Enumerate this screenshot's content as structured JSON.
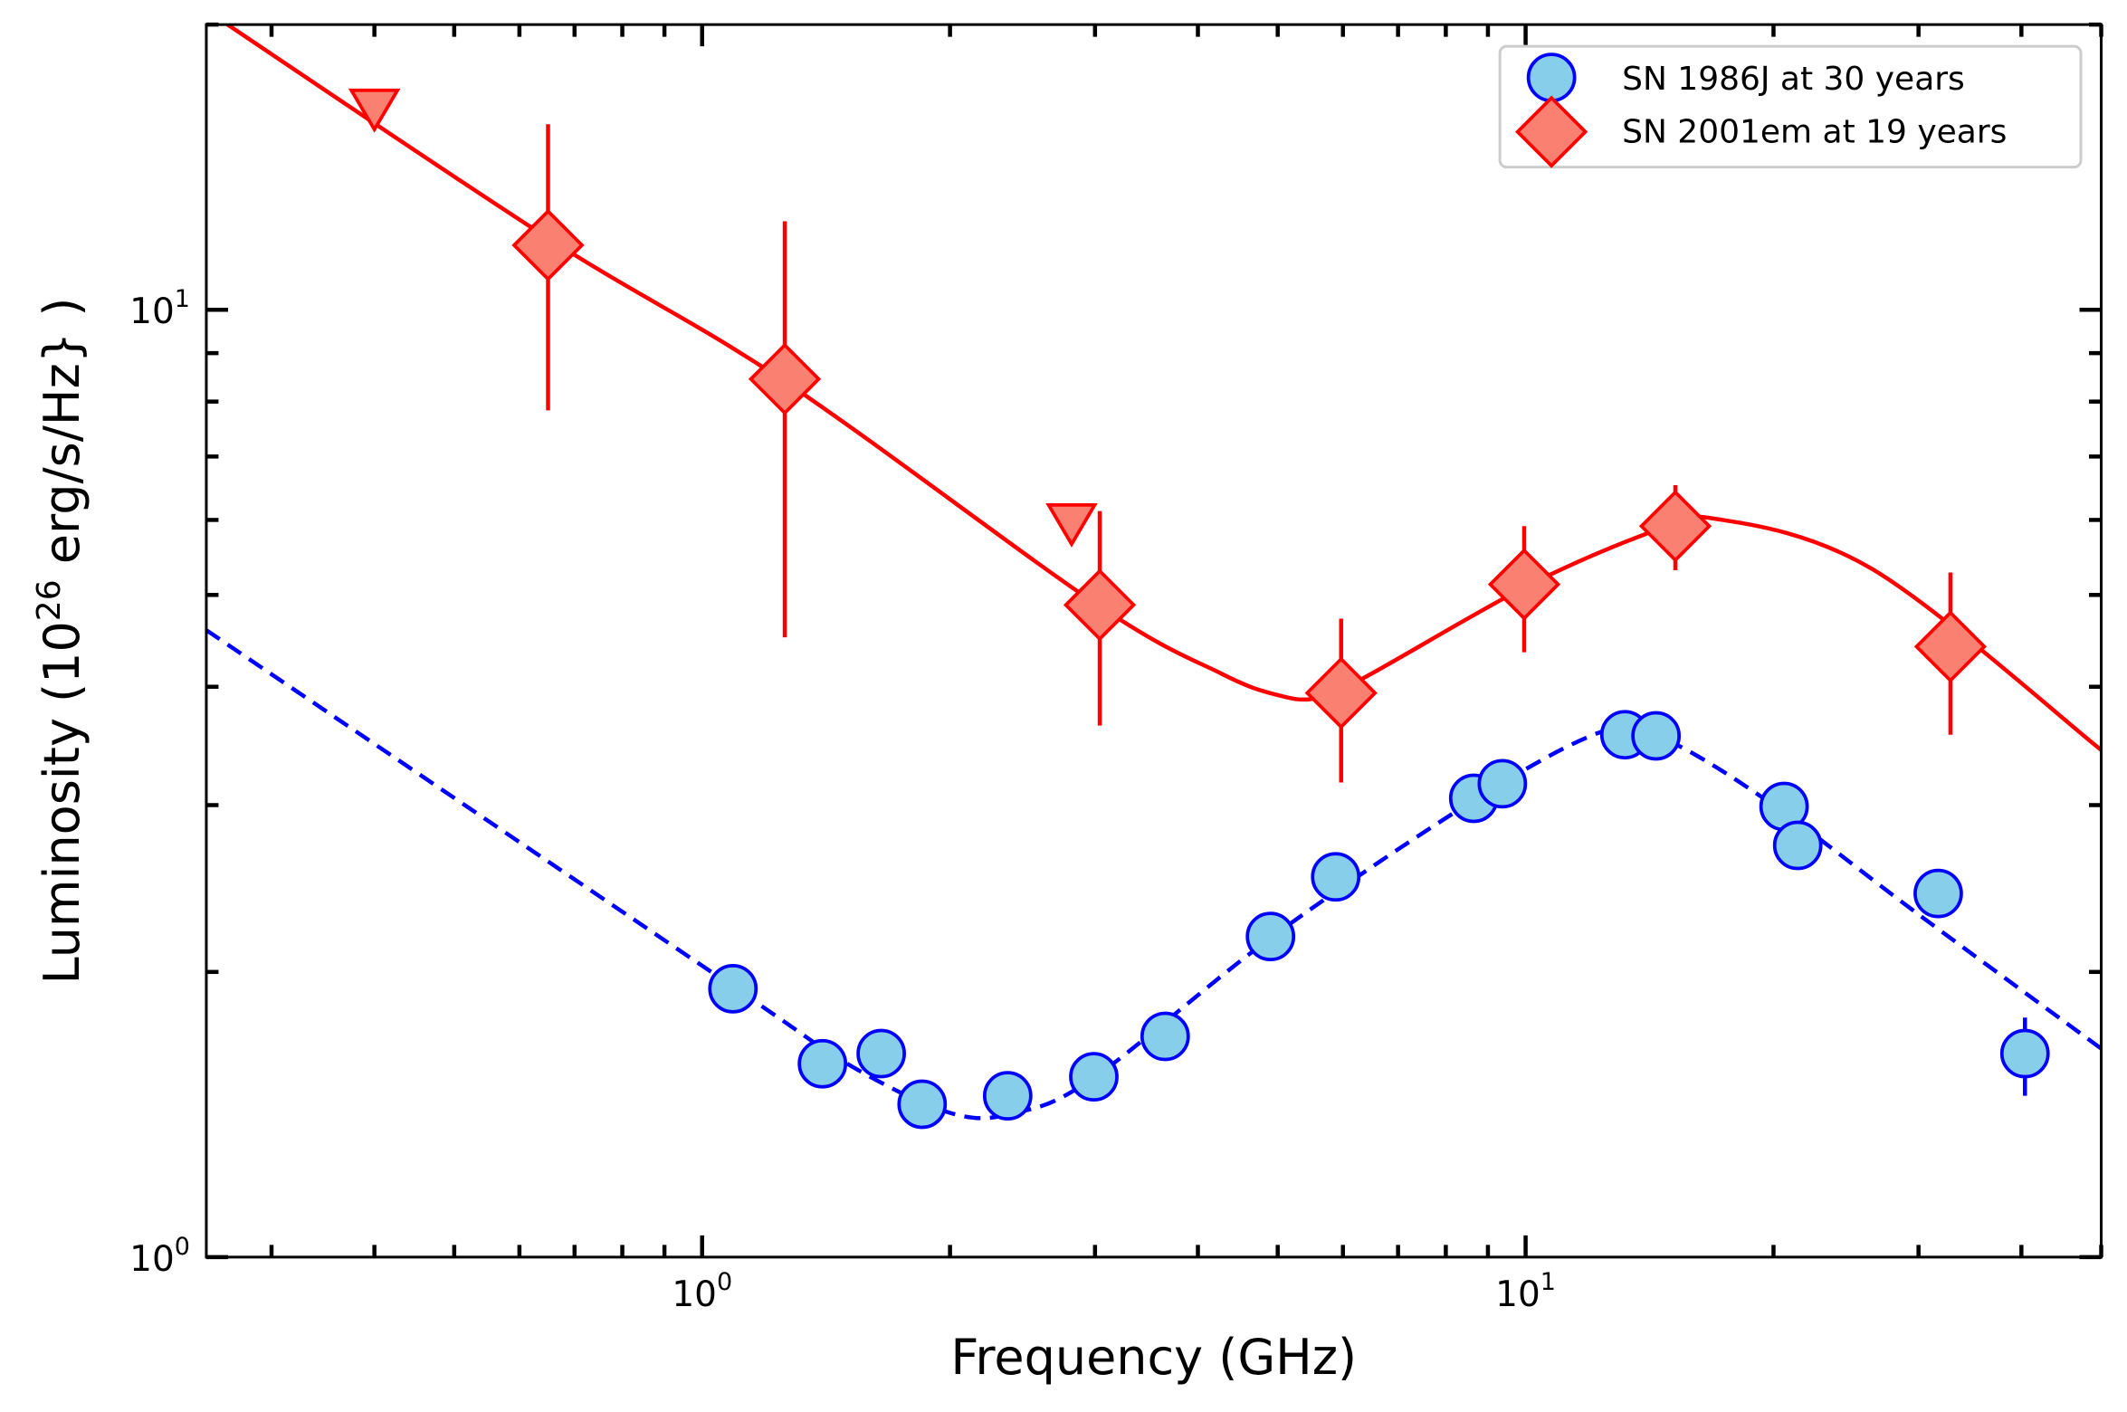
{
  "chart_data": {
    "type": "scatter",
    "xscale": "log",
    "yscale": "log",
    "xlim": [
      0.25,
      50
    ],
    "ylim": [
      1,
      20
    ],
    "xlabel": "Frequency (GHz)",
    "ylabel": {
      "prefix": "Luminosity (10",
      "sup": "26",
      "suffix": " erg/s/Hz} )"
    },
    "grid": false,
    "legend_placement": "top-right",
    "x_ticks": [
      {
        "value": 1,
        "base": "10",
        "exp": "0"
      },
      {
        "value": 10,
        "base": "10",
        "exp": "1"
      }
    ],
    "y_ticks": [
      {
        "value": 1,
        "base": "10",
        "exp": "0"
      },
      {
        "value": 10,
        "base": "10",
        "exp": "1"
      }
    ],
    "series": [
      {
        "name": "SN 1986J at 30 years",
        "marker": "circle",
        "face_color": "#87ceeb",
        "edge_color": "#0000ff",
        "points": [
          {
            "x": 1.09,
            "y": 1.92
          },
          {
            "x": 1.4,
            "y": 1.6
          },
          {
            "x": 1.65,
            "y": 1.64
          },
          {
            "x": 1.85,
            "y": 1.45
          },
          {
            "x": 2.35,
            "y": 1.48
          },
          {
            "x": 2.99,
            "y": 1.55
          },
          {
            "x": 3.65,
            "y": 1.71
          },
          {
            "x": 4.9,
            "y": 2.18
          },
          {
            "x": 5.88,
            "y": 2.52
          },
          {
            "x": 8.65,
            "y": 3.05
          },
          {
            "x": 9.37,
            "y": 3.16
          },
          {
            "x": 13.2,
            "y": 3.56
          },
          {
            "x": 14.4,
            "y": 3.55
          },
          {
            "x": 20.6,
            "y": 2.99
          },
          {
            "x": 21.4,
            "y": 2.72
          },
          {
            "x": 31.7,
            "y": 2.42
          },
          {
            "x": 40.4,
            "y": 1.64,
            "ylo": 1.48,
            "yhi": 1.79
          }
        ],
        "model": {
          "style": "dashed",
          "color": "#0000ff",
          "points": [
            [
              0.25,
              4.59
            ],
            [
              1.09,
              1.93
            ],
            [
              1.5,
              1.6
            ],
            [
              2.0,
              1.42
            ],
            [
              2.4,
              1.42
            ],
            [
              3.0,
              1.55
            ],
            [
              5.0,
              2.2
            ],
            [
              9.0,
              3.1
            ],
            [
              12.8,
              3.62
            ],
            [
              15,
              3.5
            ],
            [
              20,
              3.0
            ],
            [
              30,
              2.3
            ],
            [
              50,
              1.66
            ]
          ]
        }
      },
      {
        "name": "SN 2001em at 19 years",
        "marker": "diamond",
        "face_color": "#fa8072",
        "edge_color": "#ff0000",
        "points": [
          {
            "x": 0.65,
            "y": 11.7,
            "ylo": 7.83,
            "yhi": 15.7
          },
          {
            "x": 1.26,
            "y": 8.45,
            "ylo": 4.51,
            "yhi": 12.4
          },
          {
            "x": 3.04,
            "y": 4.88,
            "ylo": 3.64,
            "yhi": 6.13
          },
          {
            "x": 5.97,
            "y": 3.94,
            "ylo": 3.17,
            "yhi": 4.72
          },
          {
            "x": 9.96,
            "y": 5.13,
            "ylo": 4.35,
            "yhi": 5.91
          },
          {
            "x": 15.2,
            "y": 5.91,
            "ylo": 5.31,
            "yhi": 6.53
          },
          {
            "x": 32.8,
            "y": 4.41,
            "ylo": 3.56,
            "yhi": 5.28
          }
        ],
        "upper_limits": [
          {
            "x": 0.4,
            "y": 16.3
          },
          {
            "x": 2.81,
            "y": 5.95
          }
        ],
        "model": {
          "style": "solid",
          "color": "#ff0000",
          "points": [
            [
              0.263,
              20.1
            ],
            [
              0.65,
              11.9
            ],
            [
              1.26,
              8.4
            ],
            [
              3.0,
              4.9
            ],
            [
              4.27,
              4.13
            ],
            [
              5.0,
              3.92
            ],
            [
              5.57,
              3.89
            ],
            [
              6.37,
              4.09
            ],
            [
              10,
              5.1
            ],
            [
              14,
              5.8
            ],
            [
              16.7,
              6.03
            ],
            [
              26.4,
              5.32
            ],
            [
              50,
              3.43
            ]
          ]
        }
      }
    ]
  }
}
